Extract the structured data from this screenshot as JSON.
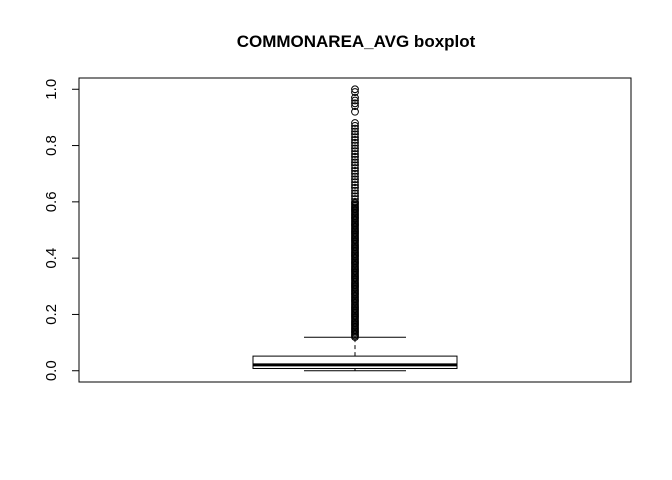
{
  "chart_data": {
    "type": "boxplot",
    "title": "COMMONAREA_AVG boxplot",
    "xlabel": "",
    "ylabel": "",
    "ylim": [
      -0.04,
      1.04
    ],
    "yticks": [
      0.0,
      0.2,
      0.4,
      0.6,
      0.8,
      1.0
    ],
    "ytick_labels": [
      "0.0",
      "0.2",
      "0.4",
      "0.6",
      "0.8",
      "1.0"
    ],
    "grid": false,
    "legend": "none",
    "box": {
      "whisker_low": 0.0,
      "q1": 0.008,
      "median": 0.021,
      "q3": 0.052,
      "whisker_high": 0.119
    },
    "outliers_dense_range": [
      0.12,
      0.6
    ],
    "outliers_sparse": [
      0.61,
      0.62,
      0.63,
      0.64,
      0.65,
      0.66,
      0.67,
      0.68,
      0.69,
      0.7,
      0.71,
      0.72,
      0.73,
      0.74,
      0.75,
      0.76,
      0.77,
      0.78,
      0.79,
      0.8,
      0.81,
      0.82,
      0.83,
      0.84,
      0.85,
      0.86,
      0.87,
      0.88,
      0.92,
      0.94,
      0.95,
      0.96,
      0.97,
      0.99,
      1.0
    ],
    "colors": {
      "stroke": "#000000",
      "background": "#ffffff"
    }
  }
}
